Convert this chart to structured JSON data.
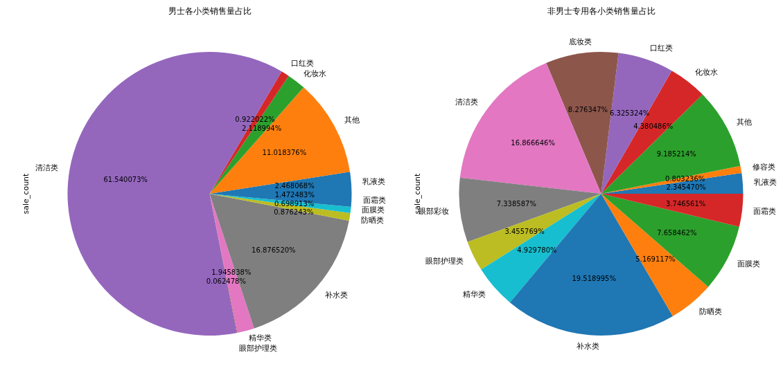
{
  "chart_data": [
    {
      "type": "pie",
      "title": "男士各小类销售量占比",
      "ylabel": "sale_count",
      "categories": [
        "乳液类",
        "其他",
        "化妆水",
        "口红类",
        "清洁类",
        "眼部护理类",
        "精华类",
        "补水类",
        "防晒类",
        "面膜类",
        "面霜类"
      ],
      "values": [
        2.468068,
        11.018376,
        2.118994,
        0.922022,
        61.540073,
        0.062478,
        1.945838,
        16.87652,
        0.876243,
        0.698913,
        1.472483
      ],
      "value_labels": [
        "2.468068%",
        "11.018376%",
        "2.118994%",
        "0.922022%",
        "61.540073%",
        "0.062478%",
        "1.945838%",
        "16.876520%",
        "0.876243%",
        "0.698913%",
        "1.472483%"
      ],
      "colors": [
        "#1f77b4",
        "#ff7f0e",
        "#2ca02c",
        "#d62728",
        "#9467bd",
        "#8c564b",
        "#e377c2",
        "#7f7f7f",
        "#bcbd22",
        "#17becf",
        "#1f77b4"
      ]
    },
    {
      "type": "pie",
      "title": "非男士专用各小类销售量占比",
      "ylabel": "sale_count",
      "categories": [
        "乳液类",
        "修容类",
        "其他",
        "化妆水",
        "口红类",
        "底妆类",
        "清洁类",
        "眼部彩妆",
        "眼部护理类",
        "精华类",
        "补水类",
        "防晒类",
        "面膜类",
        "面霜类"
      ],
      "values": [
        2.34547,
        0.803236,
        9.185214,
        4.380486,
        6.325324,
        8.276347,
        16.866646,
        7.338587,
        3.455769,
        4.92978,
        19.518995,
        5.169117,
        7.658462,
        3.746561
      ],
      "value_labels": [
        "2.345470%",
        "0.803236%",
        "9.185214%",
        "4.380486%",
        "6.325324%",
        "8.276347%",
        "16.866646%",
        "7.338587%",
        "3.455769%",
        "4.929780%",
        "19.518995%",
        "5.169117%",
        "7.658462%",
        "3.746561%"
      ],
      "colors": [
        "#1f77b4",
        "#ff7f0e",
        "#2ca02c",
        "#d62728",
        "#9467bd",
        "#8c564b",
        "#e377c2",
        "#7f7f7f",
        "#bcbd22",
        "#17becf",
        "#1f77b4",
        "#ff7f0e",
        "#2ca02c",
        "#d62728"
      ]
    }
  ]
}
